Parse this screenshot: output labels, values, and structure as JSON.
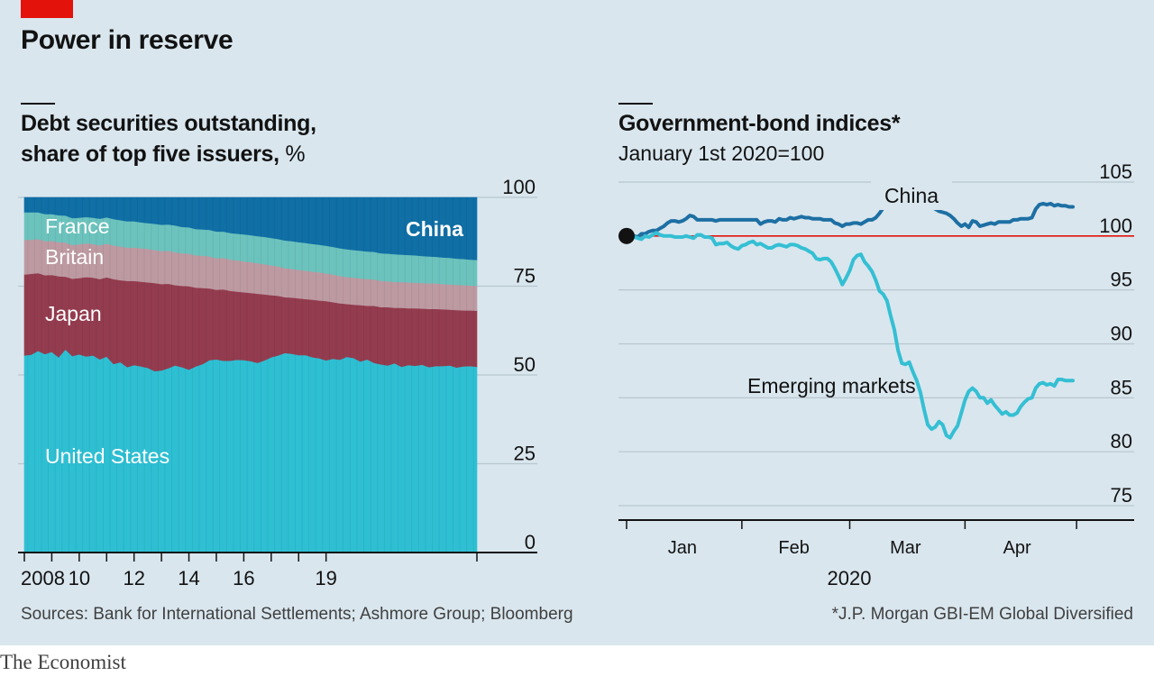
{
  "header": {
    "title": "Power in reserve"
  },
  "left_panel": {
    "title_line1": "Debt securities outstanding,",
    "title_line2": "share of top five issuers,",
    "unit": "%"
  },
  "right_panel": {
    "title": "Government-bond indices*",
    "subtitle": "January 1st 2020=100"
  },
  "footer": {
    "source": "Sources: Bank for International Settlements; Ashmore Group; Bloomberg",
    "note": "*J.P. Morgan GBI-EM Global Diversified",
    "brand": "The Economist"
  },
  "colors": {
    "united_states": "#2ebfd3",
    "japan": "#943c4f",
    "britain": "#bd9aa2",
    "france": "#6cc3bd",
    "china": "#106fa5",
    "china_line": "#1d6fa3",
    "em_line": "#35bfd3",
    "baseline": "#e3120b",
    "background": "#d9e6ee"
  },
  "chart_data": [
    {
      "type": "area",
      "stacked": true,
      "x_start": 2008.0,
      "x_step": 0.25,
      "xticks": [
        2008,
        2009,
        2010,
        2011,
        2012,
        2013,
        2014,
        2015,
        2016,
        2017,
        2018,
        2019
      ],
      "xtick_labels": [
        "2008",
        "10",
        "12",
        "14",
        "16",
        "19"
      ],
      "xtick_label_years": [
        2008,
        2010,
        2012,
        2014,
        2016,
        2019
      ],
      "ylim": [
        0,
        100
      ],
      "yticks": [
        0,
        25,
        50,
        75,
        100
      ],
      "grid": true,
      "series": [
        {
          "name": "United States",
          "key": "united_states",
          "values": [
            55.5,
            55.7,
            56.8,
            55.9,
            56.5,
            55.0,
            57.2,
            55.3,
            55.8,
            55.2,
            55.5,
            54.4,
            55.2,
            53.1,
            53.6,
            52.2,
            52.8,
            52.4,
            52.0,
            51.1,
            51.3,
            51.9,
            52.7,
            52.2,
            51.5,
            52.4,
            53.1,
            54.2,
            54.4,
            54.0,
            54.0,
            54.3,
            54.2,
            53.9,
            53.4,
            54.1,
            55.0,
            55.5,
            56.2,
            56.0,
            55.6,
            55.6,
            55.0,
            54.7,
            54.1,
            54.6,
            54.3,
            55.1,
            54.8,
            53.8,
            54.4,
            53.4,
            53.0,
            52.7,
            53.3,
            52.3,
            52.8,
            52.6,
            52.9,
            52.2,
            52.5,
            52.5,
            52.7,
            52.1,
            52.4,
            52.5,
            52.3
          ]
        },
        {
          "name": "Japan",
          "key": "japan",
          "values": [
            22.8,
            22.8,
            21.9,
            22.2,
            21.7,
            22.8,
            20.5,
            21.8,
            21.5,
            22.4,
            21.9,
            22.6,
            22.3,
            23.9,
            23.1,
            24.3,
            23.7,
            23.9,
            24.1,
            24.8,
            24.3,
            23.8,
            22.6,
            22.9,
            23.5,
            22.2,
            21.4,
            20.2,
            19.6,
            20.1,
            19.7,
            19.2,
            19.1,
            19.2,
            19.5,
            18.6,
            17.5,
            16.8,
            15.7,
            15.8,
            16.0,
            15.8,
            16.2,
            16.3,
            16.7,
            15.9,
            15.9,
            14.9,
            15.0,
            15.9,
            15.1,
            16.1,
            16.1,
            16.4,
            15.6,
            16.6,
            16.0,
            16.2,
            15.8,
            16.4,
            16.1,
            16.0,
            15.7,
            16.2,
            15.8,
            15.7,
            15.8
          ]
        },
        {
          "name": "Britain",
          "key": "britain",
          "values": [
            9.8,
            9.6,
            9.6,
            9.6,
            9.6,
            9.6,
            9.6,
            9.5,
            9.5,
            9.5,
            9.5,
            9.5,
            9.5,
            9.5,
            9.5,
            9.4,
            9.4,
            9.4,
            9.4,
            9.3,
            9.3,
            9.3,
            9.3,
            9.2,
            9.2,
            9.1,
            9.1,
            9.0,
            8.9,
            8.9,
            8.8,
            8.8,
            8.7,
            8.7,
            8.6,
            8.5,
            8.4,
            8.3,
            8.2,
            8.1,
            8.0,
            8.0,
            7.9,
            7.9,
            7.8,
            7.8,
            7.7,
            7.6,
            7.6,
            7.5,
            7.5,
            7.4,
            7.4,
            7.3,
            7.3,
            7.3,
            7.3,
            7.2,
            7.2,
            7.2,
            7.2,
            7.1,
            7.1,
            7.1,
            7.1,
            7.0,
            7.0
          ]
        },
        {
          "name": "France",
          "key": "france",
          "values": [
            7.7,
            7.7,
            7.5,
            7.6,
            7.5,
            7.6,
            7.6,
            7.6,
            7.5,
            7.4,
            7.4,
            7.5,
            7.4,
            7.4,
            7.4,
            7.4,
            7.4,
            7.3,
            7.3,
            7.4,
            7.4,
            7.4,
            7.5,
            7.4,
            7.4,
            7.4,
            7.4,
            7.5,
            7.5,
            7.4,
            7.5,
            7.5,
            7.6,
            7.6,
            7.6,
            7.7,
            7.7,
            7.7,
            7.8,
            7.8,
            7.8,
            7.8,
            7.8,
            7.8,
            7.8,
            7.8,
            7.8,
            7.8,
            7.8,
            7.8,
            7.8,
            7.8,
            7.8,
            7.8,
            7.8,
            7.7,
            7.7,
            7.7,
            7.6,
            7.6,
            7.5,
            7.5,
            7.5,
            7.4,
            7.4,
            7.3,
            7.3
          ]
        },
        {
          "name": "China",
          "key": "china",
          "values": [
            4.2,
            4.2,
            4.2,
            4.7,
            4.7,
            5.0,
            5.1,
            5.8,
            5.7,
            5.5,
            5.7,
            6.0,
            5.6,
            6.1,
            6.4,
            6.7,
            6.7,
            7.0,
            7.2,
            7.4,
            7.7,
            7.6,
            7.9,
            8.3,
            8.4,
            8.9,
            9.0,
            9.1,
            9.6,
            9.6,
            10.0,
            10.2,
            10.4,
            10.6,
            10.9,
            11.1,
            11.4,
            11.7,
            12.1,
            12.3,
            12.6,
            12.8,
            13.1,
            13.3,
            13.6,
            13.9,
            14.3,
            14.6,
            14.8,
            15.0,
            15.2,
            15.3,
            15.7,
            15.8,
            16.0,
            16.1,
            16.2,
            16.3,
            16.5,
            16.6,
            16.7,
            16.9,
            17.0,
            17.2,
            17.3,
            17.5,
            17.6
          ]
        }
      ]
    },
    {
      "type": "line",
      "x_start": "2020-01-01",
      "x_step_days": 1,
      "month_ticks": [
        "2020-01-01",
        "2020-02-01",
        "2020-03-01",
        "2020-04-01",
        "2020-05-01"
      ],
      "month_labels": [
        {
          "label": "Jan",
          "date": "2020-01-16"
        },
        {
          "label": "Feb",
          "date": "2020-02-15"
        },
        {
          "label": "Mar",
          "date": "2020-03-16"
        },
        {
          "label": "Apr",
          "date": "2020-04-15"
        }
      ],
      "xlabel": "2020",
      "ylim": [
        74,
        106
      ],
      "yticks": [
        75,
        80,
        85,
        90,
        95,
        100,
        105
      ],
      "baseline": 100,
      "start_marker": {
        "date": "2020-01-01",
        "value": 100
      },
      "grid": true,
      "series": [
        {
          "name": "China",
          "key": "china_line",
          "values": [
            100.0,
            100.0,
            100.0,
            99.9,
            100.2,
            100.2,
            100.4,
            100.5,
            100.5,
            100.7,
            100.9,
            101.2,
            101.4,
            101.4,
            101.3,
            101.4,
            101.6,
            101.9,
            101.8,
            101.5,
            101.5,
            101.5,
            101.5,
            101.5,
            101.4,
            101.5,
            101.5,
            101.5,
            101.5,
            101.5,
            101.5,
            101.5,
            101.5,
            101.5,
            101.5,
            101.5,
            101.1,
            101.3,
            101.4,
            101.4,
            101.3,
            101.6,
            101.5,
            101.5,
            101.7,
            101.6,
            101.7,
            101.8,
            101.7,
            101.7,
            101.6,
            101.6,
            101.6,
            101.5,
            101.5,
            101.5,
            101.2,
            101.1,
            100.9,
            101.1,
            101.1,
            101.2,
            101.2,
            101.1,
            101.3,
            101.5,
            101.5,
            101.7,
            102.1,
            102.6,
            102.8,
            103.0,
            103.1,
            103.0,
            102.8,
            102.7,
            102.8,
            103.1,
            103.3,
            103.4,
            103.3,
            103.1,
            102.8,
            102.5,
            102.3,
            102.2,
            102.1,
            101.9,
            101.6,
            101.2,
            100.9,
            101.1,
            100.8,
            101.4,
            101.3,
            100.9,
            101.0,
            101.1,
            101.2,
            101.1,
            101.3,
            101.3,
            101.3,
            101.3,
            101.5,
            101.5,
            101.6,
            101.6,
            101.6,
            101.7,
            102.5,
            102.9,
            103.0,
            102.9,
            103.0,
            102.8,
            102.9,
            102.8,
            102.8,
            102.7,
            102.7
          ]
        },
        {
          "name": "Emerging markets",
          "key": "em_line",
          "values": [
            100.0,
            100.0,
            99.9,
            99.8,
            99.7,
            100.0,
            99.9,
            100.1,
            100.3,
            100.1,
            100.0,
            100.0,
            100.0,
            99.9,
            99.9,
            99.9,
            100.0,
            99.9,
            99.8,
            100.1,
            100.1,
            99.9,
            99.9,
            99.8,
            99.2,
            99.3,
            99.3,
            99.4,
            99.1,
            98.9,
            98.8,
            99.1,
            99.2,
            99.4,
            99.5,
            99.2,
            99.3,
            99.1,
            98.9,
            98.9,
            99.1,
            99.2,
            99.1,
            99.0,
            99.2,
            99.2,
            99.1,
            98.9,
            98.8,
            98.6,
            98.4,
            97.9,
            97.8,
            97.9,
            97.9,
            97.6,
            97.0,
            96.3,
            95.5,
            96.1,
            96.8,
            97.8,
            98.2,
            98.3,
            97.6,
            97.2,
            96.7,
            95.9,
            94.9,
            94.6,
            94.0,
            92.6,
            91.3,
            89.4,
            88.2,
            88.1,
            88.3,
            87.4,
            86.6,
            85.5,
            83.9,
            82.5,
            82.1,
            82.3,
            82.8,
            82.5,
            81.5,
            81.3,
            81.9,
            82.4,
            83.6,
            84.8,
            85.6,
            85.9,
            85.6,
            85.0,
            85.0,
            84.5,
            84.8,
            84.3,
            83.9,
            83.5,
            83.7,
            83.4,
            83.4,
            83.6,
            84.2,
            84.6,
            84.9,
            85.0,
            85.9,
            86.3,
            86.4,
            86.2,
            86.3,
            86.1,
            86.7,
            86.7,
            86.6,
            86.6,
            86.6
          ]
        }
      ]
    }
  ]
}
